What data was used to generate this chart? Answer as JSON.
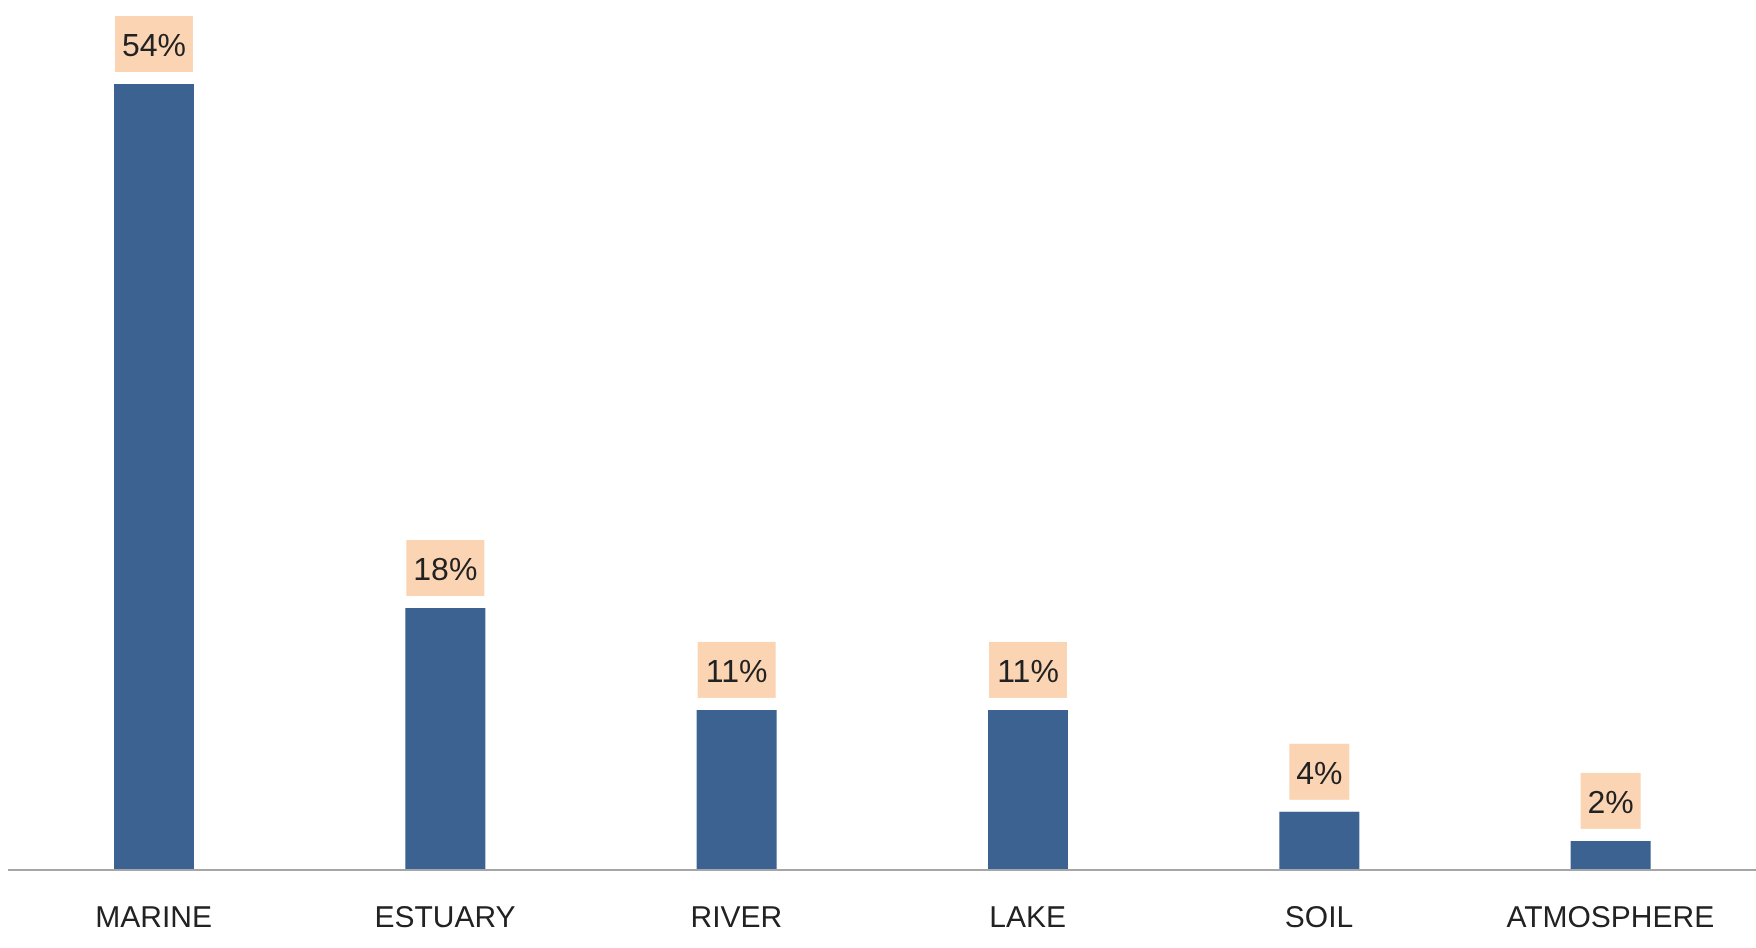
{
  "chart_data": {
    "type": "bar",
    "categories": [
      "MARINE",
      "ESTUARY",
      "RIVER",
      "LAKE",
      "SOIL",
      "ATMOSPHERE"
    ],
    "values": [
      54,
      18,
      11,
      11,
      4,
      2
    ],
    "color": "#3c6291",
    "value_labels": [
      "54%",
      "18%",
      "11%",
      "11%",
      "4%",
      "2%"
    ],
    "grid": false,
    "legend": false
  }
}
